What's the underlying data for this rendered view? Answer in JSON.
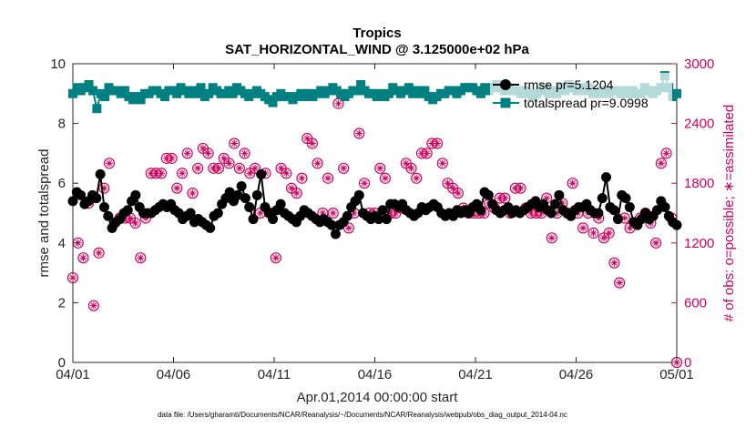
{
  "chart_data": {
    "type": "line",
    "title": "Tropics",
    "subtitle": "SAT_HORIZONTAL_WIND @ 3.125000e+02 hPa",
    "xlabel": "Apr.01,2014 00:00:00 start",
    "ylabel_left": "rmse and totalspread",
    "ylabel_right": "# of obs: o=possible; ∗=assimilated",
    "x_ticks": [
      "04/01",
      "04/06",
      "04/11",
      "04/16",
      "04/21",
      "04/26",
      "05/01"
    ],
    "x_range_days": [
      0,
      30
    ],
    "ylim_left": [
      0,
      10
    ],
    "yticks_left": [
      "0",
      "2",
      "4",
      "6",
      "8",
      "10"
    ],
    "ylim_right": [
      0,
      3000
    ],
    "yticks_right": [
      "0",
      "600",
      "1200",
      "1800",
      "2400",
      "3000"
    ],
    "legend_position": "top-right",
    "footnote": "data file: /Users/gharamti/Documents/NCAR/Reanalysis/~/Documents/NCAR/Reanalysis/webpub/obs_diag_output_2014-04.nc",
    "colors": {
      "rmse": "#000000",
      "totalspread": "#008080",
      "obs": "#d1005c",
      "axis": "#262626"
    },
    "series": [
      {
        "name": "rmse pr=5.1204",
        "axis": "left",
        "values": [
          5.4,
          5.7,
          5.6,
          5.3,
          5.4,
          5.6,
          5.5,
          6.3,
          5.2,
          4.9,
          4.5,
          4.7,
          4.8,
          5.0,
          5.1,
          5.4,
          5.6,
          5.2,
          5.0,
          5.0,
          5.0,
          5.1,
          5.2,
          5.3,
          5.2,
          5.3,
          5.1,
          5.0,
          4.8,
          4.9,
          5.0,
          4.7,
          4.8,
          4.7,
          4.6,
          4.5,
          4.9,
          5.0,
          5.3,
          5.5,
          5.7,
          5.4,
          5.6,
          5.9,
          5.5,
          5.2,
          4.8,
          5.6,
          6.3,
          5.2,
          5.0,
          4.8,
          5.1,
          5.3,
          5.0,
          4.9,
          4.8,
          4.7,
          4.9,
          5.1,
          5.0,
          4.9,
          4.8,
          4.7,
          4.8,
          4.7,
          4.6,
          4.3,
          4.6,
          4.7,
          4.9,
          5.2,
          5.4,
          5.6,
          5.0,
          4.9,
          4.8,
          4.9,
          4.8,
          5.1,
          4.8,
          5.3,
          5.3,
          5.2,
          5.3,
          5.1,
          5.0,
          4.9,
          5.0,
          5.2,
          5.1,
          5.2,
          5.3,
          5.2,
          5.0,
          4.9,
          5.0,
          4.9,
          5.1,
          5.0,
          5.1,
          5.0,
          5.2,
          5.3,
          5.1,
          5.7,
          5.6,
          5.3,
          5.1,
          5.0,
          5.1,
          5.2,
          5.0,
          5.1,
          5.0,
          5.1,
          5.2,
          5.3,
          5.4,
          5.2,
          5.3,
          5.1,
          5.0,
          5.3,
          5.6,
          5.1,
          5.0,
          4.9,
          5.1,
          5.2,
          5.2,
          5.3,
          5.1,
          5.0,
          5.0,
          5.5,
          6.2,
          5.2,
          5.1,
          4.8,
          5.6,
          5.5,
          5.2,
          4.7,
          4.6,
          4.8,
          5.0,
          4.8,
          4.9,
          5.1,
          5.4,
          5.2,
          4.9,
          4.7,
          4.6
        ]
      },
      {
        "name": "totalspread pr=9.0998",
        "axis": "left",
        "values": [
          9.0,
          9.2,
          9.1,
          9.2,
          9.3,
          9.1,
          8.5,
          9.0,
          8.9,
          9.2,
          9.1,
          9.1,
          9.0,
          9.1,
          8.9,
          8.8,
          8.9,
          8.8,
          9.0,
          9.0,
          9.1,
          9.1,
          9.0,
          8.9,
          9.1,
          9.1,
          9.0,
          9.2,
          9.1,
          9.0,
          9.1,
          9.0,
          9.2,
          8.9,
          9.0,
          9.2,
          9.1,
          9.0,
          9.0,
          9.1,
          9.0,
          9.2,
          9.1,
          9.0,
          8.9,
          9.0,
          9.1,
          9.0,
          8.9,
          8.8,
          8.7,
          8.9,
          9.0,
          8.9,
          8.9,
          8.8,
          8.9,
          9.0,
          8.9,
          9.0,
          8.9,
          9.0,
          9.1,
          9.0,
          9.1,
          9.2,
          9.1,
          9.0,
          8.9,
          9.0,
          9.1,
          9.1,
          9.3,
          9.1,
          9.0,
          9.0,
          8.9,
          9.0,
          8.9,
          9.0,
          9.2,
          9.1,
          9.0,
          9.1,
          9.2,
          9.0,
          9.1,
          9.0,
          9.1,
          8.9,
          8.8,
          8.9,
          9.0,
          9.0,
          9.1,
          9.1,
          9.0,
          9.1,
          9.2,
          9.2,
          9.2,
          9.1,
          9.0,
          9.2,
          9.1,
          9.2,
          9.3,
          9.2,
          9.1,
          9.2,
          9.1,
          9.1,
          9.0,
          9.1,
          9.0,
          8.9,
          9.0,
          9.1,
          9.2,
          9.0,
          9.1,
          9.0,
          9.2,
          9.1,
          9.3,
          9.2,
          9.1,
          9.2,
          9.1,
          9.2,
          9.0,
          9.1,
          9.0,
          9.1,
          9.0,
          9.1,
          9.1,
          9.0,
          9.1,
          9.0,
          9.1,
          9.0,
          9.0,
          9.2,
          9.1,
          9.0,
          9.1,
          9.2,
          9.6,
          9.2,
          8.9,
          9.0
        ]
      },
      {
        "name": "obs possible",
        "axis": "right",
        "values": [
          850,
          1200,
          1050,
          1600,
          570,
          1100,
          1750,
          2000,
          1400,
          1450,
          1450,
          1450,
          1400,
          1050,
          1450,
          1900,
          1900,
          1900,
          2050,
          2050,
          1750,
          1900,
          2100,
          1700,
          1950,
          2150,
          2100,
          1950,
          1950,
          2050,
          2000,
          2200,
          1950,
          2100,
          1900,
          1950,
          1500,
          1900,
          1500,
          1050,
          1950,
          1900,
          1750,
          1700,
          1850,
          2250,
          2200,
          2000,
          1500,
          1850,
          1500,
          2600,
          1950,
          1350,
          1500,
          2300,
          1800,
          1500,
          1500,
          1950,
          1850,
          1500,
          1500,
          1550,
          2000,
          1950,
          1850,
          2100,
          2100,
          2200,
          2200,
          2000,
          1800,
          1750,
          1700,
          1550,
          1500,
          1500,
          1500,
          1500,
          1600,
          1550,
          1650,
          1650,
          1500,
          1750,
          1750,
          1550,
          1500,
          1500,
          1500,
          1650,
          1250,
          1500,
          1600,
          1500,
          1800,
          1500,
          1350,
          1500,
          1300,
          1450,
          1250,
          1300,
          1000,
          800,
          1450,
          1350,
          1400,
          1450,
          1500,
          1400,
          1200,
          2000,
          2100,
          1450,
          0
        ]
      }
    ]
  }
}
